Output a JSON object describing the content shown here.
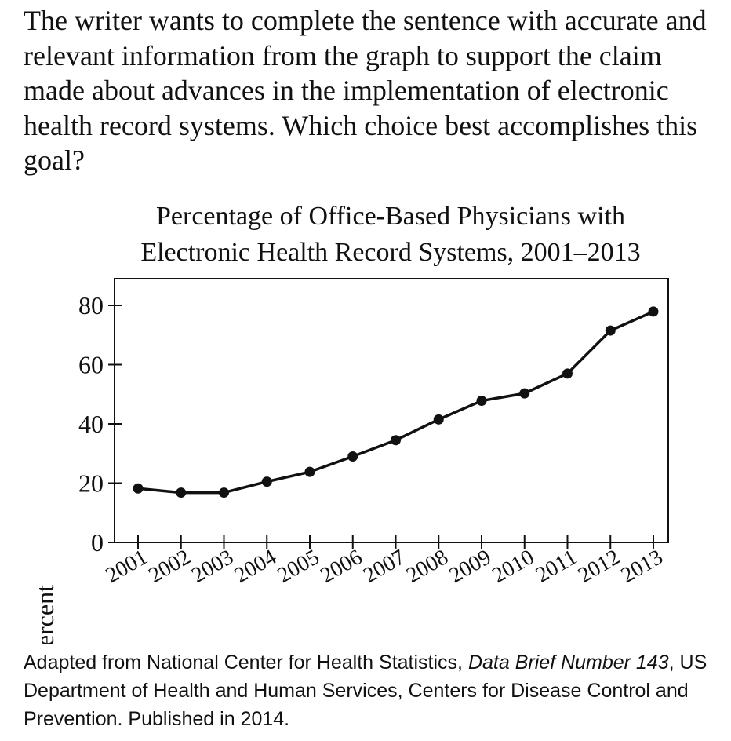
{
  "question": {
    "text": "The writer wants to complete the sentence with accurate and relevant information from the graph to support the claim made about advances in the implementation of electronic health record systems. Which choice best accomplishes this goal?"
  },
  "chart_data": {
    "type": "line",
    "title_lines": [
      "Percentage of Office-Based Physicians with",
      "Electronic Health Record Systems, 2001–2013"
    ],
    "ylabel": "Percent",
    "xlabel": "",
    "ylim": [
      0,
      80
    ],
    "yticks": [
      0,
      20,
      40,
      60,
      80
    ],
    "categories": [
      "2001",
      "2002",
      "2003",
      "2004",
      "2005",
      "2006",
      "2007",
      "2008",
      "2009",
      "2010",
      "2011",
      "2012",
      "2013"
    ],
    "series": [
      {
        "values": [
          18.2,
          16.8,
          16.8,
          20.5,
          23.8,
          29.0,
          34.5,
          41.5,
          47.8,
          50.3,
          57.0,
          71.5,
          77.9
        ]
      }
    ],
    "grid": false,
    "line_color": "#111111"
  },
  "source": {
    "prefix": "Adapted from National Center for Health Statistics, ",
    "italic": "Data Brief Number 143",
    "suffix": ", US Department of Health and Human Services, Centers for Disease Control and Prevention. Published in 2014."
  }
}
